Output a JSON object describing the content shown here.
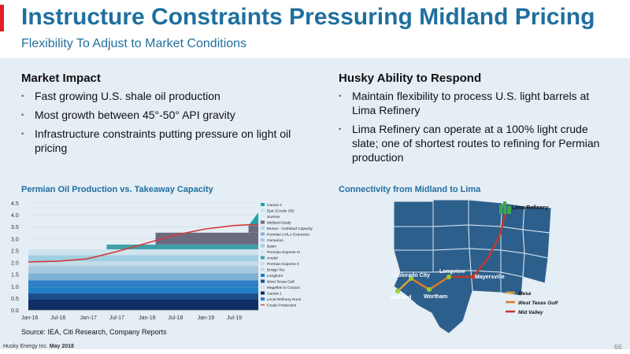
{
  "header": {
    "title": "Instructure Constraints Pressuring Midland Pricing",
    "subtitle": "Flexibility To Adjust to Market Conditions"
  },
  "market_impact": {
    "heading": "Market Impact",
    "bullets": [
      "Fast growing U.S. shale oil production",
      "Most growth between 45°-50° API gravity",
      "Infrastructure constraints putting pressure on light oil pricing"
    ]
  },
  "husky": {
    "heading": "Husky Ability to Respond",
    "bullets": [
      "Maintain flexibility to process U.S. light barrels at Lima Refinery",
      "Lima Refinery can operate at a 100% light crude slate; one of shortest routes to refining for Permian production"
    ]
  },
  "chart_data": {
    "type": "area",
    "title": "Permian Oil Production vs. Takeaway Capacity",
    "x_tick_labels": [
      "Jan-16",
      "Jul-16",
      "Jan-17",
      "Jul-17",
      "Jan-18",
      "Jul-18",
      "Jan-19",
      "Jul-19"
    ],
    "ylim": [
      0,
      4.5
    ],
    "y_ticks": [
      "0.0",
      "0.5",
      "1.0",
      "1.5",
      "2.0",
      "2.5",
      "3.0",
      "3.5",
      "4.0",
      "4.5"
    ],
    "stacked_capacity_total": {
      "x": [
        "Jan-16",
        "Jul-16",
        "Jan-17",
        "Apr-17",
        "May-17",
        "Jul-17",
        "Jan-18",
        "Mar-18",
        "Jul-18",
        "Jan-19",
        "Jul-19",
        "Oct-19",
        "Dec-19"
      ],
      "values": [
        2.55,
        2.55,
        2.55,
        2.55,
        2.75,
        2.75,
        2.75,
        3.25,
        3.25,
        3.25,
        3.25,
        3.55,
        4.1
      ]
    },
    "crude_production": {
      "x": [
        "Jan-16",
        "Jul-16",
        "Jan-17",
        "Jul-17",
        "Jan-18",
        "Jul-18",
        "Jan-19",
        "Jul-19",
        "Dec-19"
      ],
      "values": [
        2.02,
        2.05,
        2.15,
        2.45,
        2.8,
        3.15,
        3.4,
        3.55,
        3.6
      ]
    },
    "legend": [
      {
        "name": "Cactus 2",
        "color": "#1aa6a6"
      },
      {
        "name": "Epic (Crude Oil)",
        "color": "#bfe6ee"
      },
      {
        "name": "Sunrise",
        "color": "#d9eef5"
      },
      {
        "name": "Midland-Sealy",
        "color": "#6b6b80"
      },
      {
        "name": "Munex - Carlsbad Capacity",
        "color": "#b5d6e8"
      },
      {
        "name": "Permian LV/LA Extension",
        "color": "#7fb2d6"
      },
      {
        "name": "Centurion",
        "color": "#a8c8e0"
      },
      {
        "name": "Basin",
        "color": "#9fcfe0"
      },
      {
        "name": "Permian Express III",
        "color": "#d2e7f0"
      },
      {
        "name": "Amdel",
        "color": "#3f9fa8"
      },
      {
        "name": "Permian Express II",
        "color": "#c9dde8"
      },
      {
        "name": "Bridge Tex",
        "color": "#c2dce8"
      },
      {
        "name": "Longhorn",
        "color": "#1e7fc4"
      },
      {
        "name": "West Texas Gulf",
        "color": "#1b4f8a"
      },
      {
        "name": "Magellan to Corpus",
        "color": "#cfe3ef"
      },
      {
        "name": "Cactus 1",
        "color": "#0f2e66"
      },
      {
        "name": "Local Refinery Runs",
        "color": "#2f7fc6"
      },
      {
        "name": "Crude Production",
        "color": "#d43a3a"
      }
    ],
    "source": "Source: IEA, Citi Research, Company Reports"
  },
  "map": {
    "title": "Connectivity from Midland to Lima",
    "labels": {
      "lima": "Lima Refinery",
      "colorado_city": "Colorado City",
      "longview": "Longview",
      "mayersville": "Mayersville",
      "midland": "Midland",
      "wortham": "Wortham"
    },
    "legend": [
      {
        "name": "Mesa",
        "color": "#d9a23a"
      },
      {
        "name": "West Texas Gulf",
        "color": "#e07a2a"
      },
      {
        "name": "Mid Valley",
        "color": "#c0392b"
      }
    ]
  },
  "footer": {
    "company": "Husky Energy Inc.",
    "date": "May 2018",
    "page": "66"
  }
}
